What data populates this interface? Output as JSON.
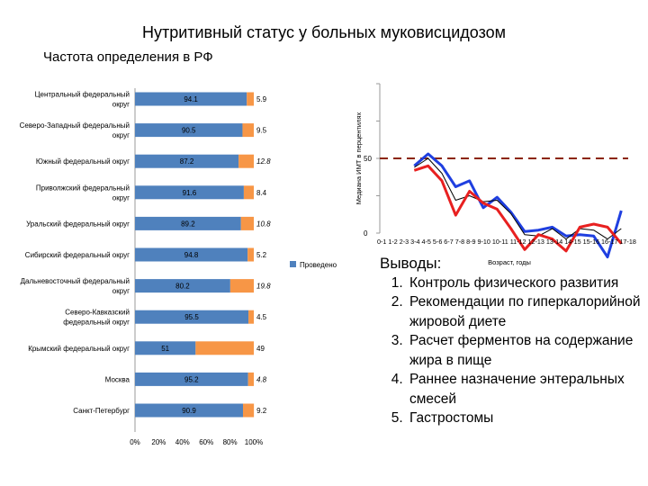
{
  "page": {
    "title": "Нутритивный статус у больных муковисцидозом",
    "subtitle": "Частота определения в РФ"
  },
  "chart_data": [
    {
      "type": "bar",
      "stacked": true,
      "orientation": "horizontal",
      "categories": [
        [
          "Центральный федеральный",
          "округ"
        ],
        [
          "Северо-Западный федеральный",
          "округ"
        ],
        [
          "Южный федеральный округ"
        ],
        [
          "Приволжский федеральный",
          "округ"
        ],
        [
          "Уральский федеральный округ"
        ],
        [
          "Сибирский федеральный округ"
        ],
        [
          "Дальневосточный федеральный",
          "округ"
        ],
        [
          "Северо-Кавказский",
          "федеральный округ"
        ],
        [
          "Крымский федеральный округ"
        ],
        [
          "Москва"
        ],
        [
          "Санкт-Петербург"
        ]
      ],
      "series": [
        {
          "name": "Проведено",
          "color": "#4F81BD",
          "values": [
            94.1,
            90.5,
            87.2,
            91.6,
            89.2,
            94.8,
            80.2,
            95.5,
            51,
            95.2,
            90.9
          ],
          "labels": [
            "94.1",
            "90.5",
            "87.2",
            "91.6",
            "89.2",
            "94.8",
            "80.2",
            "95.5",
            "51",
            "95.2",
            "90.9"
          ]
        },
        {
          "name": "",
          "color": "#F79646",
          "values": [
            5.9,
            9.5,
            12.8,
            8.4,
            10.8,
            5.2,
            19.8,
            4.5,
            49,
            4.8,
            9.2
          ],
          "labels": [
            "5.9",
            "9.5",
            "12.8",
            "8.4",
            "10.8",
            "5.2",
            "19.8",
            "4.5",
            "49",
            "4.8",
            "9.2"
          ]
        }
      ],
      "xlim": [
        0,
        100
      ],
      "xticks": [
        "0%",
        "20%",
        "40%",
        "60%",
        "80%",
        "100%"
      ],
      "legend": "right"
    },
    {
      "type": "line",
      "ylabel": "Медиана ИМТ в перцентилях",
      "xlabel": "Возраст, годы",
      "x": [
        "0-1",
        "1-2",
        "2-3",
        "3-4",
        "4-5",
        "5-6",
        "6-7",
        "7-8",
        "8-9",
        "9-10",
        "10-11",
        "11-12",
        "12-13",
        "13-14",
        "14-15",
        "15-16",
        "16-17",
        "17-18"
      ],
      "xticks_text": "0-1  1-2  2-3  3-4  4-5  5-6  6-7  7-8  8-9  9-10 10-11 11-12 12-13 13-14 14-15 15-16 16-17 17-18",
      "yticks": [
        "0",
        "50"
      ],
      "ylim": [
        0,
        100
      ],
      "reference_line": 50,
      "series": [
        {
          "name": "blue",
          "color": "#1F3FE0",
          "values": [
            null,
            null,
            45,
            53,
            45,
            31,
            35,
            17,
            24,
            14,
            1,
            2,
            4,
            -2,
            -1,
            -2,
            -16,
            15
          ]
        },
        {
          "name": "black",
          "color": "#000000",
          "values": [
            null,
            null,
            44,
            50,
            40,
            22,
            25,
            21,
            22,
            13,
            -1,
            -2,
            3,
            -4,
            3,
            2,
            -4,
            3
          ]
        },
        {
          "name": "red",
          "color": "#E82020",
          "values": [
            null,
            null,
            42,
            45,
            35,
            12,
            28,
            20,
            16,
            3,
            -11,
            -1,
            -4,
            -12,
            4,
            6,
            4,
            -7
          ]
        }
      ]
    }
  ],
  "conclusions": {
    "heading": "Выводы:",
    "items": [
      "Контроль физического развития",
      "Рекомендации по гиперкалорийной жировой диете",
      "Расчет ферментов на содержание жира в пище",
      "Раннее назначение энтеральных смесей",
      "Гастростомы"
    ]
  }
}
